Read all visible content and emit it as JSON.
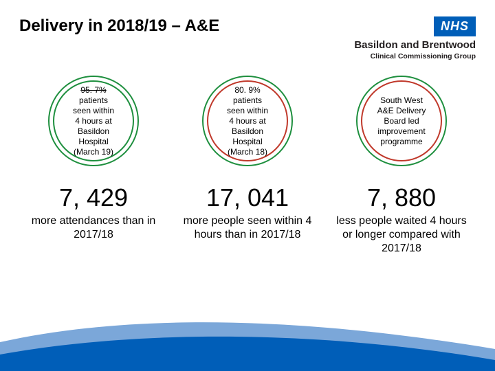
{
  "title": "Delivery in 2018/19 – A&E",
  "logo": {
    "nhs": "NHS",
    "line1": "Basildon and Brentwood",
    "line2": "Clinical Commissioning Group",
    "nhs_blue": "#005EB8"
  },
  "circles": [
    {
      "percent": "95. 7%",
      "percent_struck": true,
      "body": "patients\nseen within\n4 hours at\nBasildon\nHospital\n(March 19)",
      "rings": [
        {
          "color": "#1E8F3E",
          "size": 118,
          "width": 2
        },
        {
          "color": "#1E8F3E",
          "size": 132,
          "width": 2
        }
      ]
    },
    {
      "percent": "80. 9%",
      "percent_struck": false,
      "body": "patients\nseen within\n4 hours at\nBasildon\nHospital\n(March 18)",
      "rings": [
        {
          "color": "#C0392B",
          "size": 118,
          "width": 2
        },
        {
          "color": "#1E8F3E",
          "size": 132,
          "width": 2
        }
      ]
    },
    {
      "percent": "",
      "percent_struck": false,
      "body": "South West\nA&E Delivery\nBoard led\nimprovement\nprogramme",
      "rings": [
        {
          "color": "#C0392B",
          "size": 118,
          "width": 2
        },
        {
          "color": "#1E8F3E",
          "size": 132,
          "width": 2
        }
      ]
    }
  ],
  "stats": [
    {
      "value": "7, 429",
      "desc": "more attendances than in 2017/18"
    },
    {
      "value": "17, 041",
      "desc": "more people seen within 4 hours than in 2017/18"
    },
    {
      "value": "7, 880",
      "desc": "less people waited 4 hours or longer compared with 2017/18"
    }
  ],
  "swoosh": {
    "top_color": "#7BA7D9",
    "bottom_color": "#005EB8"
  }
}
